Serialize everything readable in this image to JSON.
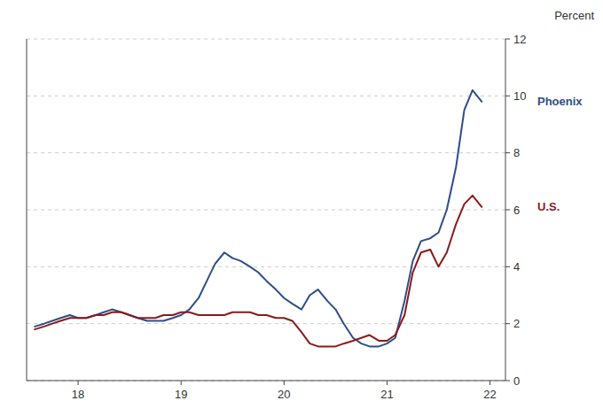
{
  "chart_data": {
    "type": "line",
    "y_label": "Percent",
    "x": [
      17.58,
      17.67,
      17.75,
      17.83,
      17.92,
      18.0,
      18.08,
      18.17,
      18.25,
      18.33,
      18.42,
      18.5,
      18.58,
      18.67,
      18.75,
      18.83,
      18.92,
      19.0,
      19.08,
      19.17,
      19.25,
      19.33,
      19.42,
      19.5,
      19.58,
      19.67,
      19.75,
      19.83,
      19.92,
      20.0,
      20.08,
      20.17,
      20.25,
      20.33,
      20.42,
      20.5,
      20.58,
      20.67,
      20.75,
      20.83,
      20.92,
      21.0,
      21.08,
      21.17,
      21.25,
      21.33,
      21.42,
      21.5,
      21.58,
      21.67,
      21.75,
      21.83,
      21.92
    ],
    "series": [
      {
        "name": "Phoenix",
        "color": "#2e4d8a",
        "values": [
          1.9,
          2.0,
          2.1,
          2.2,
          2.3,
          2.2,
          2.2,
          2.3,
          2.4,
          2.5,
          2.4,
          2.3,
          2.2,
          2.1,
          2.1,
          2.1,
          2.2,
          2.3,
          2.5,
          2.9,
          3.5,
          4.1,
          4.5,
          4.3,
          4.2,
          4.0,
          3.8,
          3.5,
          3.2,
          2.9,
          2.7,
          2.5,
          3.0,
          3.2,
          2.8,
          2.5,
          2.0,
          1.5,
          1.3,
          1.2,
          1.2,
          1.3,
          1.5,
          2.8,
          4.2,
          4.9,
          5.0,
          5.2,
          6.0,
          7.5,
          9.5,
          10.2,
          9.8
        ]
      },
      {
        "name": "U.S.",
        "color": "#8b1a1a",
        "values": [
          1.8,
          1.9,
          2.0,
          2.1,
          2.2,
          2.2,
          2.2,
          2.3,
          2.3,
          2.4,
          2.4,
          2.3,
          2.2,
          2.2,
          2.2,
          2.3,
          2.3,
          2.4,
          2.4,
          2.3,
          2.3,
          2.3,
          2.3,
          2.4,
          2.4,
          2.4,
          2.3,
          2.3,
          2.2,
          2.2,
          2.1,
          1.7,
          1.3,
          1.2,
          1.2,
          1.2,
          1.3,
          1.4,
          1.5,
          1.6,
          1.4,
          1.4,
          1.6,
          2.3,
          3.8,
          4.5,
          4.6,
          4.0,
          4.5,
          5.5,
          6.2,
          6.5,
          6.1
        ]
      }
    ],
    "xlim": [
      17.5,
      22.15
    ],
    "ylim": [
      0,
      12
    ],
    "xticks": [
      18,
      19,
      20,
      21,
      22
    ],
    "yticks": [
      0,
      2,
      4,
      6,
      8,
      10,
      12
    ],
    "grid": true
  }
}
